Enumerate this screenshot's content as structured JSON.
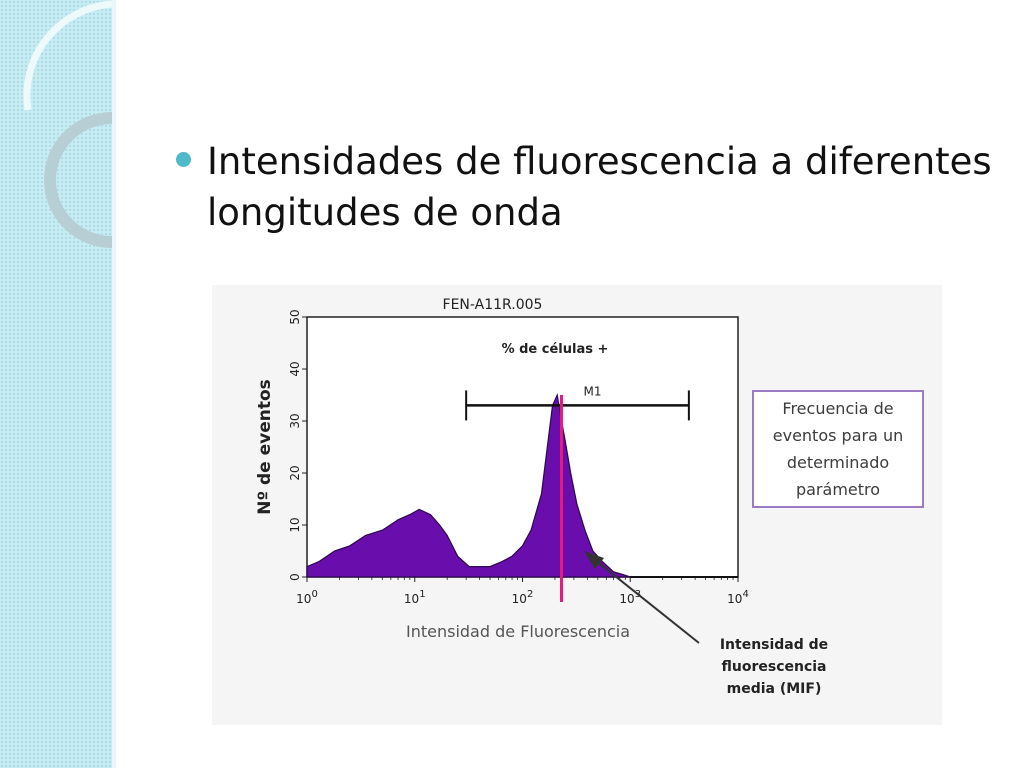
{
  "slide": {
    "bullet_text": "Intensidades de fluorescencia a diferentes longitudes de onda"
  },
  "colors": {
    "sidebar": "#c7ecf2",
    "bullet": "#4fb9cc",
    "histogram_fill": "#6a0dad",
    "mif_line": "#e6197d",
    "note_border": "#9b7cc2"
  },
  "chart_data": {
    "type": "area",
    "title": "FEN-A11R.005",
    "subtitle": "% de células +",
    "xlabel": "Intensidad de Fluorescencia",
    "ylabel": "Nº de eventos",
    "x_scale": "log",
    "xlim": [
      1,
      10000
    ],
    "ylim": [
      0,
      50
    ],
    "x_ticks": [
      {
        "value": 1,
        "label": "10",
        "exp": "0"
      },
      {
        "value": 10,
        "label": "10",
        "exp": "1"
      },
      {
        "value": 100,
        "label": "10",
        "exp": "2"
      },
      {
        "value": 1000,
        "label": "10",
        "exp": "3"
      },
      {
        "value": 10000,
        "label": "10",
        "exp": "4"
      }
    ],
    "y_ticks": [
      0,
      10,
      20,
      30,
      40,
      50
    ],
    "series": [
      {
        "x": [
          1,
          1.3,
          1.8,
          2.5,
          3.5,
          5,
          7,
          9,
          11,
          14,
          17,
          20,
          25,
          32,
          40,
          50,
          65,
          80,
          100,
          120,
          150,
          170,
          190,
          210,
          230,
          250,
          280,
          320,
          380,
          450,
          550,
          700,
          850,
          1000
        ],
        "values": [
          2,
          3,
          5,
          6,
          8,
          9,
          11,
          12,
          13,
          12,
          10,
          8,
          4,
          2,
          2,
          2,
          3,
          4,
          6,
          9,
          16,
          25,
          33,
          35,
          30,
          26,
          20,
          14,
          9,
          5,
          3,
          1,
          0.5,
          0
        ]
      }
    ],
    "gate": {
      "label": "M1",
      "x_start": 30,
      "x_end": 3500,
      "y": 33
    },
    "mif_x": 230
  },
  "annotations": {
    "note": "Frecuencia de\neventos para un\ndeterminado\nparámetro",
    "mif": "Intensidad de\nfluorescencia\nmedia (MIF)"
  }
}
